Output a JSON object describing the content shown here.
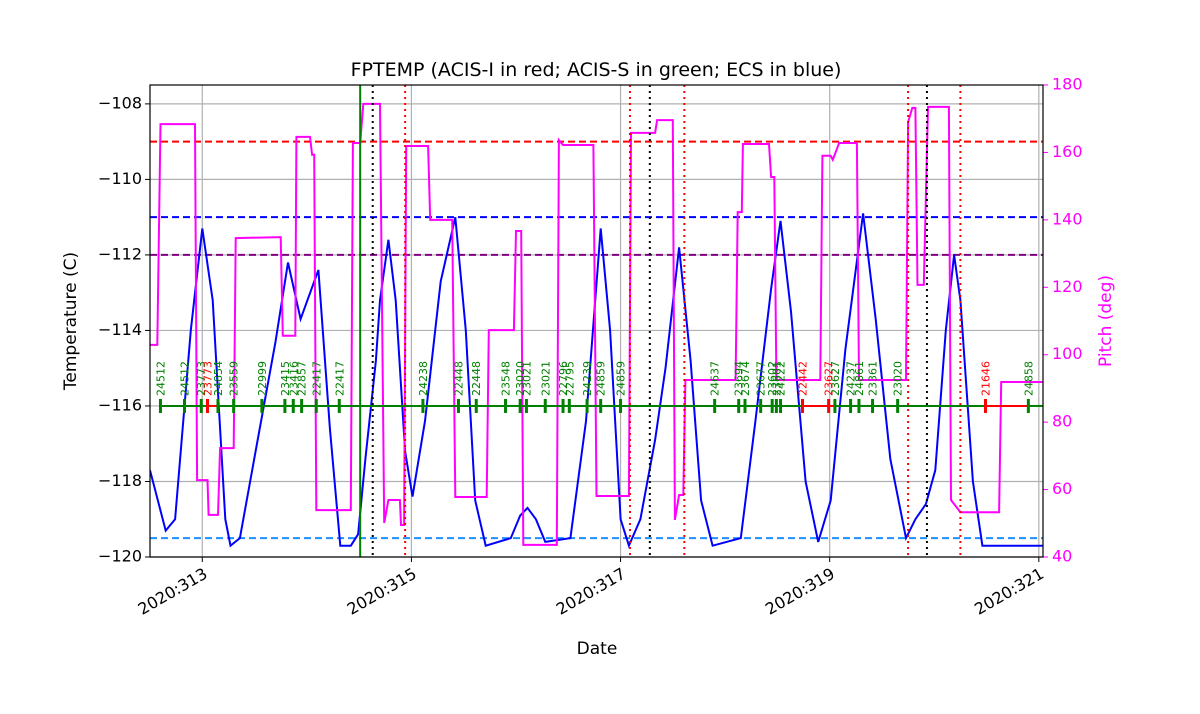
{
  "chart_data": {
    "type": "line",
    "title": "FPTEMP (ACIS-I in red; ACIS-S in green; ECS in blue)",
    "xlabel": "Date",
    "ylabel": "Temperature (C)",
    "y2label": "Pitch (deg)",
    "y2color": "#ff00ff",
    "grid": true,
    "xlim": [
      312.5,
      321.04
    ],
    "ylim": [
      -120,
      -107.5
    ],
    "y2lim": [
      40,
      180
    ],
    "xticks": [
      {
        "value": 313,
        "label": "2020:313"
      },
      {
        "value": 315,
        "label": "2020:315"
      },
      {
        "value": 317,
        "label": "2020:317"
      },
      {
        "value": 319,
        "label": "2020:319"
      },
      {
        "value": 321,
        "label": "2020:321"
      }
    ],
    "yticks": [
      {
        "value": -120,
        "label": "−120"
      },
      {
        "value": -118,
        "label": "−118"
      },
      {
        "value": -116,
        "label": "−116"
      },
      {
        "value": -114,
        "label": "−114"
      },
      {
        "value": -112,
        "label": "−112"
      },
      {
        "value": -110,
        "label": "−110"
      },
      {
        "value": -108,
        "label": "−108"
      }
    ],
    "y2ticks": [
      40,
      60,
      80,
      100,
      120,
      140,
      160,
      180
    ],
    "series": [
      {
        "color": "#0000ff",
        "x": [
          312.5,
          312.65,
          312.74,
          312.89,
          313.0,
          313.1,
          313.22,
          313.27,
          313.36,
          313.51,
          313.7,
          313.82,
          313.94,
          314.11,
          314.22,
          314.32,
          314.42,
          314.49,
          314.56,
          314.66,
          314.7,
          314.78,
          314.85,
          314.94,
          315.01,
          315.13,
          315.28,
          315.42,
          315.52,
          315.61,
          315.71,
          315.95,
          316.04,
          316.11,
          316.19,
          316.28,
          316.52,
          316.67,
          316.81,
          316.9,
          317.0,
          317.08,
          317.19,
          317.33,
          317.43,
          317.56,
          317.67,
          317.77,
          317.88,
          318.15,
          318.29,
          318.44,
          318.53,
          318.63,
          318.77,
          318.89,
          319.01,
          319.15,
          319.32,
          319.44,
          319.58,
          319.73,
          319.82,
          319.92,
          320.01,
          320.11,
          320.19,
          320.25,
          320.37,
          320.46,
          321.04
        ],
        "values": [
          -117.7,
          -119.3,
          -119.0,
          -114.0,
          -111.3,
          -113.2,
          -119.0,
          -119.7,
          -119.5,
          -117.2,
          -114.3,
          -112.2,
          -113.7,
          -112.4,
          -116.6,
          -119.7,
          -119.7,
          -119.4,
          -117.4,
          -114.8,
          -113.2,
          -111.6,
          -113.2,
          -117.2,
          -118.4,
          -116.4,
          -112.7,
          -111.0,
          -114.0,
          -118.5,
          -119.7,
          -119.5,
          -118.9,
          -118.7,
          -119.0,
          -119.6,
          -119.5,
          -116.4,
          -111.3,
          -114.0,
          -119.0,
          -119.7,
          -119.0,
          -116.9,
          -115.0,
          -111.8,
          -114.8,
          -118.5,
          -119.7,
          -119.5,
          -116.4,
          -112.9,
          -111.1,
          -113.5,
          -118.0,
          -119.6,
          -118.5,
          -114.5,
          -110.9,
          -113.7,
          -117.4,
          -119.5,
          -119.0,
          -118.6,
          -117.7,
          -114.0,
          -112.0,
          -113.2,
          -118.0,
          -119.7,
          -119.7
        ]
      },
      {
        "color": "#ff00ff",
        "axis": "y2",
        "x": [
          312.5,
          312.57,
          312.6,
          312.93,
          312.95,
          313.05,
          313.06,
          313.15,
          313.17,
          313.3,
          313.32,
          313.75,
          313.77,
          313.89,
          313.9,
          314.03,
          314.05,
          314.07,
          314.09,
          314.42,
          314.44,
          314.51,
          314.54,
          314.7,
          314.74,
          314.78,
          314.89,
          314.9,
          314.93,
          314.95,
          315.16,
          315.18,
          315.39,
          315.42,
          315.72,
          315.74,
          315.98,
          316.0,
          316.05,
          316.07,
          316.39,
          316.41,
          316.45,
          316.74,
          316.77,
          317.08,
          317.1,
          317.33,
          317.35,
          317.5,
          317.52,
          317.56,
          317.6,
          317.62,
          318.1,
          318.12,
          318.16,
          318.17,
          318.42,
          318.44,
          318.47,
          318.49,
          318.91,
          318.93,
          319.01,
          319.03,
          319.09,
          319.26,
          319.28,
          319.73,
          319.75,
          319.79,
          319.82,
          319.84,
          319.9,
          319.94,
          320.14,
          320.16,
          320.25,
          320.62,
          320.64,
          321.04
        ],
        "values": [
          102.9,
          102.9,
          168.4,
          168.4,
          62.8,
          62.8,
          52.5,
          52.5,
          72.3,
          72.3,
          134.6,
          134.9,
          105.6,
          105.6,
          164.6,
          164.6,
          159.3,
          159.3,
          53.9,
          53.9,
          162.8,
          162.8,
          174.4,
          174.4,
          50.1,
          56.9,
          56.9,
          49.5,
          49.5,
          161.9,
          161.9,
          140.0,
          140.0,
          57.8,
          57.8,
          107.3,
          107.3,
          136.7,
          136.7,
          43.6,
          43.6,
          163.7,
          162.2,
          162.2,
          58.1,
          58.1,
          165.8,
          165.8,
          169.6,
          169.6,
          51.0,
          58.4,
          58.4,
          92.5,
          92.5,
          142.3,
          142.3,
          162.5,
          162.5,
          152.7,
          152.7,
          92.5,
          92.5,
          159.0,
          159.0,
          157.8,
          162.8,
          162.8,
          92.5,
          92.5,
          169.0,
          173.2,
          173.2,
          120.7,
          120.7,
          173.5,
          173.5,
          56.9,
          53.3,
          53.3,
          91.9,
          91.9
        ]
      }
    ],
    "hlines": [
      {
        "value": -109,
        "color": "#ff0000"
      },
      {
        "value": -111,
        "color": "#0000ff"
      },
      {
        "value": -112,
        "color": "#800080"
      },
      {
        "value": -119.5,
        "color": "#1e90ff"
      }
    ],
    "vlines": [
      {
        "value": 314.51,
        "color": "#008000",
        "style": "solid"
      },
      {
        "value": 314.63,
        "color": "#000000",
        "style": "dotted"
      },
      {
        "value": 317.28,
        "color": "#000000",
        "style": "dotted"
      },
      {
        "value": 319.93,
        "color": "#000000",
        "style": "dotted"
      },
      {
        "value": 314.94,
        "color": "#ff0000",
        "style": "dotted"
      },
      {
        "value": 317.09,
        "color": "#ff0000",
        "style": "dotted"
      },
      {
        "value": 317.61,
        "color": "#ff0000",
        "style": "dotted"
      },
      {
        "value": 319.75,
        "color": "#ff0000",
        "style": "dotted"
      },
      {
        "value": 320.25,
        "color": "#ff0000",
        "style": "dotted"
      }
    ],
    "obsid_level": -116,
    "obsids": [
      {
        "x": 312.6,
        "label": "24512",
        "color": "#008000"
      },
      {
        "x": 312.83,
        "label": "24512",
        "color": "#008000"
      },
      {
        "x": 312.99,
        "label": "23773",
        "color": "#008000"
      },
      {
        "x": 313.05,
        "label": "23773",
        "color": "#ff0000"
      },
      {
        "x": 313.15,
        "label": "24854",
        "color": "#008000"
      },
      {
        "x": 313.3,
        "label": "23559",
        "color": "#008000"
      },
      {
        "x": 313.57,
        "label": "22999",
        "color": "#008000"
      },
      {
        "x": 313.79,
        "label": "23415",
        "color": "#008000"
      },
      {
        "x": 313.87,
        "label": "23416",
        "color": "#008000"
      },
      {
        "x": 313.95,
        "label": "22857",
        "color": "#008000"
      },
      {
        "x": 314.09,
        "label": "22417",
        "color": "#008000"
      },
      {
        "x": 314.31,
        "label": "22417",
        "color": "#008000"
      },
      {
        "x": 315.11,
        "label": "24238",
        "color": "#008000"
      },
      {
        "x": 315.45,
        "label": "22448",
        "color": "#008000"
      },
      {
        "x": 315.62,
        "label": "22448",
        "color": "#008000"
      },
      {
        "x": 315.9,
        "label": "23548",
        "color": "#008000"
      },
      {
        "x": 316.04,
        "label": "23020",
        "color": "#008000"
      },
      {
        "x": 316.1,
        "label": "23021",
        "color": "#008000"
      },
      {
        "x": 316.28,
        "label": "23021",
        "color": "#008000"
      },
      {
        "x": 316.45,
        "label": "22796",
        "color": "#008000"
      },
      {
        "x": 316.51,
        "label": "22795",
        "color": "#008000"
      },
      {
        "x": 316.68,
        "label": "24239",
        "color": "#008000"
      },
      {
        "x": 316.81,
        "label": "24859",
        "color": "#008000"
      },
      {
        "x": 317.0,
        "label": "24859",
        "color": "#008000"
      },
      {
        "x": 317.9,
        "label": "24637",
        "color": "#008000"
      },
      {
        "x": 318.13,
        "label": "23694",
        "color": "#008000"
      },
      {
        "x": 318.19,
        "label": "23674",
        "color": "#008000"
      },
      {
        "x": 318.34,
        "label": "23677",
        "color": "#008000"
      },
      {
        "x": 318.45,
        "label": "23602",
        "color": "#008000"
      },
      {
        "x": 318.49,
        "label": "23601",
        "color": "#008000"
      },
      {
        "x": 318.53,
        "label": "24222",
        "color": "#008000"
      },
      {
        "x": 318.74,
        "label": "22442",
        "color": "#ff0000"
      },
      {
        "x": 318.99,
        "label": "23627",
        "color": "#ff0000"
      },
      {
        "x": 319.05,
        "label": "23627",
        "color": "#008000"
      },
      {
        "x": 319.2,
        "label": "24237",
        "color": "#008000"
      },
      {
        "x": 319.28,
        "label": "24861",
        "color": "#008000"
      },
      {
        "x": 319.41,
        "label": "23361",
        "color": "#008000"
      },
      {
        "x": 319.65,
        "label": "23020",
        "color": "#008000"
      },
      {
        "x": 320.49,
        "label": "21646",
        "color": "#ff0000"
      },
      {
        "x": 320.9,
        "label": "24858",
        "color": "#008000"
      }
    ]
  }
}
